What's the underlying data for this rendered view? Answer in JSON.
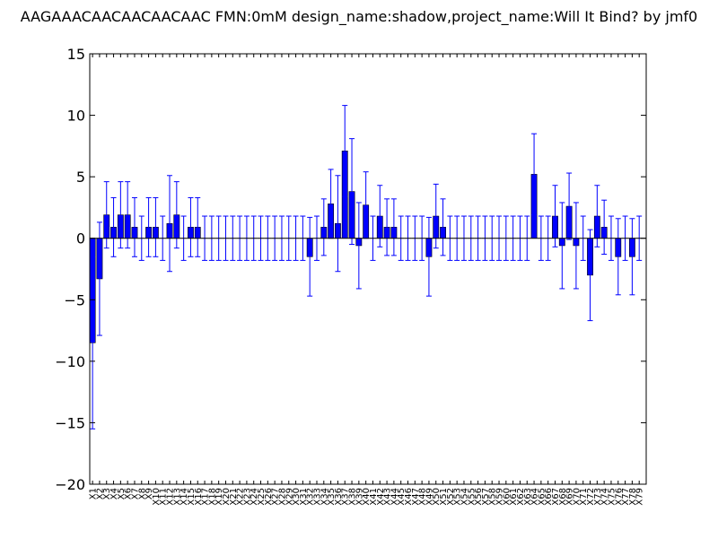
{
  "chart_data": {
    "type": "bar",
    "title": "AAGAAACAACAACAACAAC  FMN:0mM  design_name:shadow,project_name:Will It Bind? by jmf0",
    "xlabel": "",
    "ylabel": "",
    "ylim": [
      -20,
      15
    ],
    "yticks": [
      15,
      10,
      5,
      0,
      -5,
      -10,
      -15,
      -20
    ],
    "ytick_labels": [
      "15",
      "10",
      "5",
      "0",
      "−5",
      "−10",
      "−15",
      "−20"
    ],
    "categories": [
      "X1",
      "X2",
      "X3",
      "X4",
      "X5",
      "X6",
      "X7",
      "X8",
      "X9",
      "X10",
      "X11",
      "X12",
      "X13",
      "X14",
      "X15",
      "X16",
      "X17",
      "X18",
      "X19",
      "X20",
      "X21",
      "X22",
      "X23",
      "X24",
      "X25",
      "X26",
      "X27",
      "X28",
      "X29",
      "X30",
      "X31",
      "X32",
      "X33",
      "X34",
      "X35",
      "X36",
      "X37",
      "X38",
      "X39",
      "X40",
      "X41",
      "X42",
      "X43",
      "X44",
      "X45",
      "X46",
      "X47",
      "X48",
      "X49",
      "X50",
      "X51",
      "X52",
      "X53",
      "X54",
      "X55",
      "X56",
      "X57",
      "X58",
      "X59",
      "X60",
      "X61",
      "X62",
      "X63",
      "X64",
      "X65",
      "X66",
      "X67",
      "X68",
      "X69",
      "X70",
      "X71",
      "X72",
      "X73",
      "X74",
      "X75",
      "X76",
      "X77",
      "X78",
      "X79"
    ],
    "values": [
      -8.5,
      -3.3,
      1.9,
      0.9,
      1.9,
      1.9,
      0.9,
      0,
      0.9,
      0.9,
      0,
      1.2,
      1.9,
      0,
      0.9,
      0.9,
      0,
      0,
      0,
      0,
      0,
      0,
      0,
      0,
      0,
      0,
      0,
      0,
      0,
      0,
      0,
      -1.5,
      0,
      0.9,
      2.8,
      1.2,
      7.1,
      3.8,
      -0.6,
      2.7,
      0,
      1.8,
      0.9,
      0.9,
      0,
      0,
      0,
      0,
      -1.5,
      1.8,
      0.9,
      0,
      0,
      0,
      0,
      0,
      0,
      0,
      0,
      0,
      0,
      0,
      0,
      5.2,
      0,
      0,
      1.8,
      -0.6,
      2.6,
      -0.6,
      0,
      -3.0,
      1.8,
      0.9,
      0,
      -1.5,
      0,
      -1.5,
      0
    ],
    "errors": [
      7.0,
      4.6,
      2.7,
      2.4,
      2.7,
      2.7,
      2.4,
      1.8,
      2.4,
      2.4,
      1.8,
      3.9,
      2.7,
      1.8,
      2.4,
      2.4,
      1.8,
      1.8,
      1.8,
      1.8,
      1.8,
      1.8,
      1.8,
      1.8,
      1.8,
      1.8,
      1.8,
      1.8,
      1.8,
      1.8,
      1.8,
      3.2,
      1.8,
      2.3,
      2.8,
      3.9,
      3.7,
      4.3,
      3.5,
      2.7,
      1.8,
      2.5,
      2.3,
      2.3,
      1.8,
      1.8,
      1.8,
      1.8,
      3.2,
      2.6,
      2.3,
      1.8,
      1.8,
      1.8,
      1.8,
      1.8,
      1.8,
      1.8,
      1.8,
      1.8,
      1.8,
      1.8,
      1.8,
      3.3,
      1.8,
      1.8,
      2.5,
      3.5,
      2.7,
      3.5,
      1.8,
      3.7,
      2.5,
      2.2,
      1.8,
      3.1,
      1.8,
      3.1,
      1.8
    ],
    "color": "#0000ff",
    "edge_color": "#000000",
    "grid": false,
    "legend": "none"
  }
}
